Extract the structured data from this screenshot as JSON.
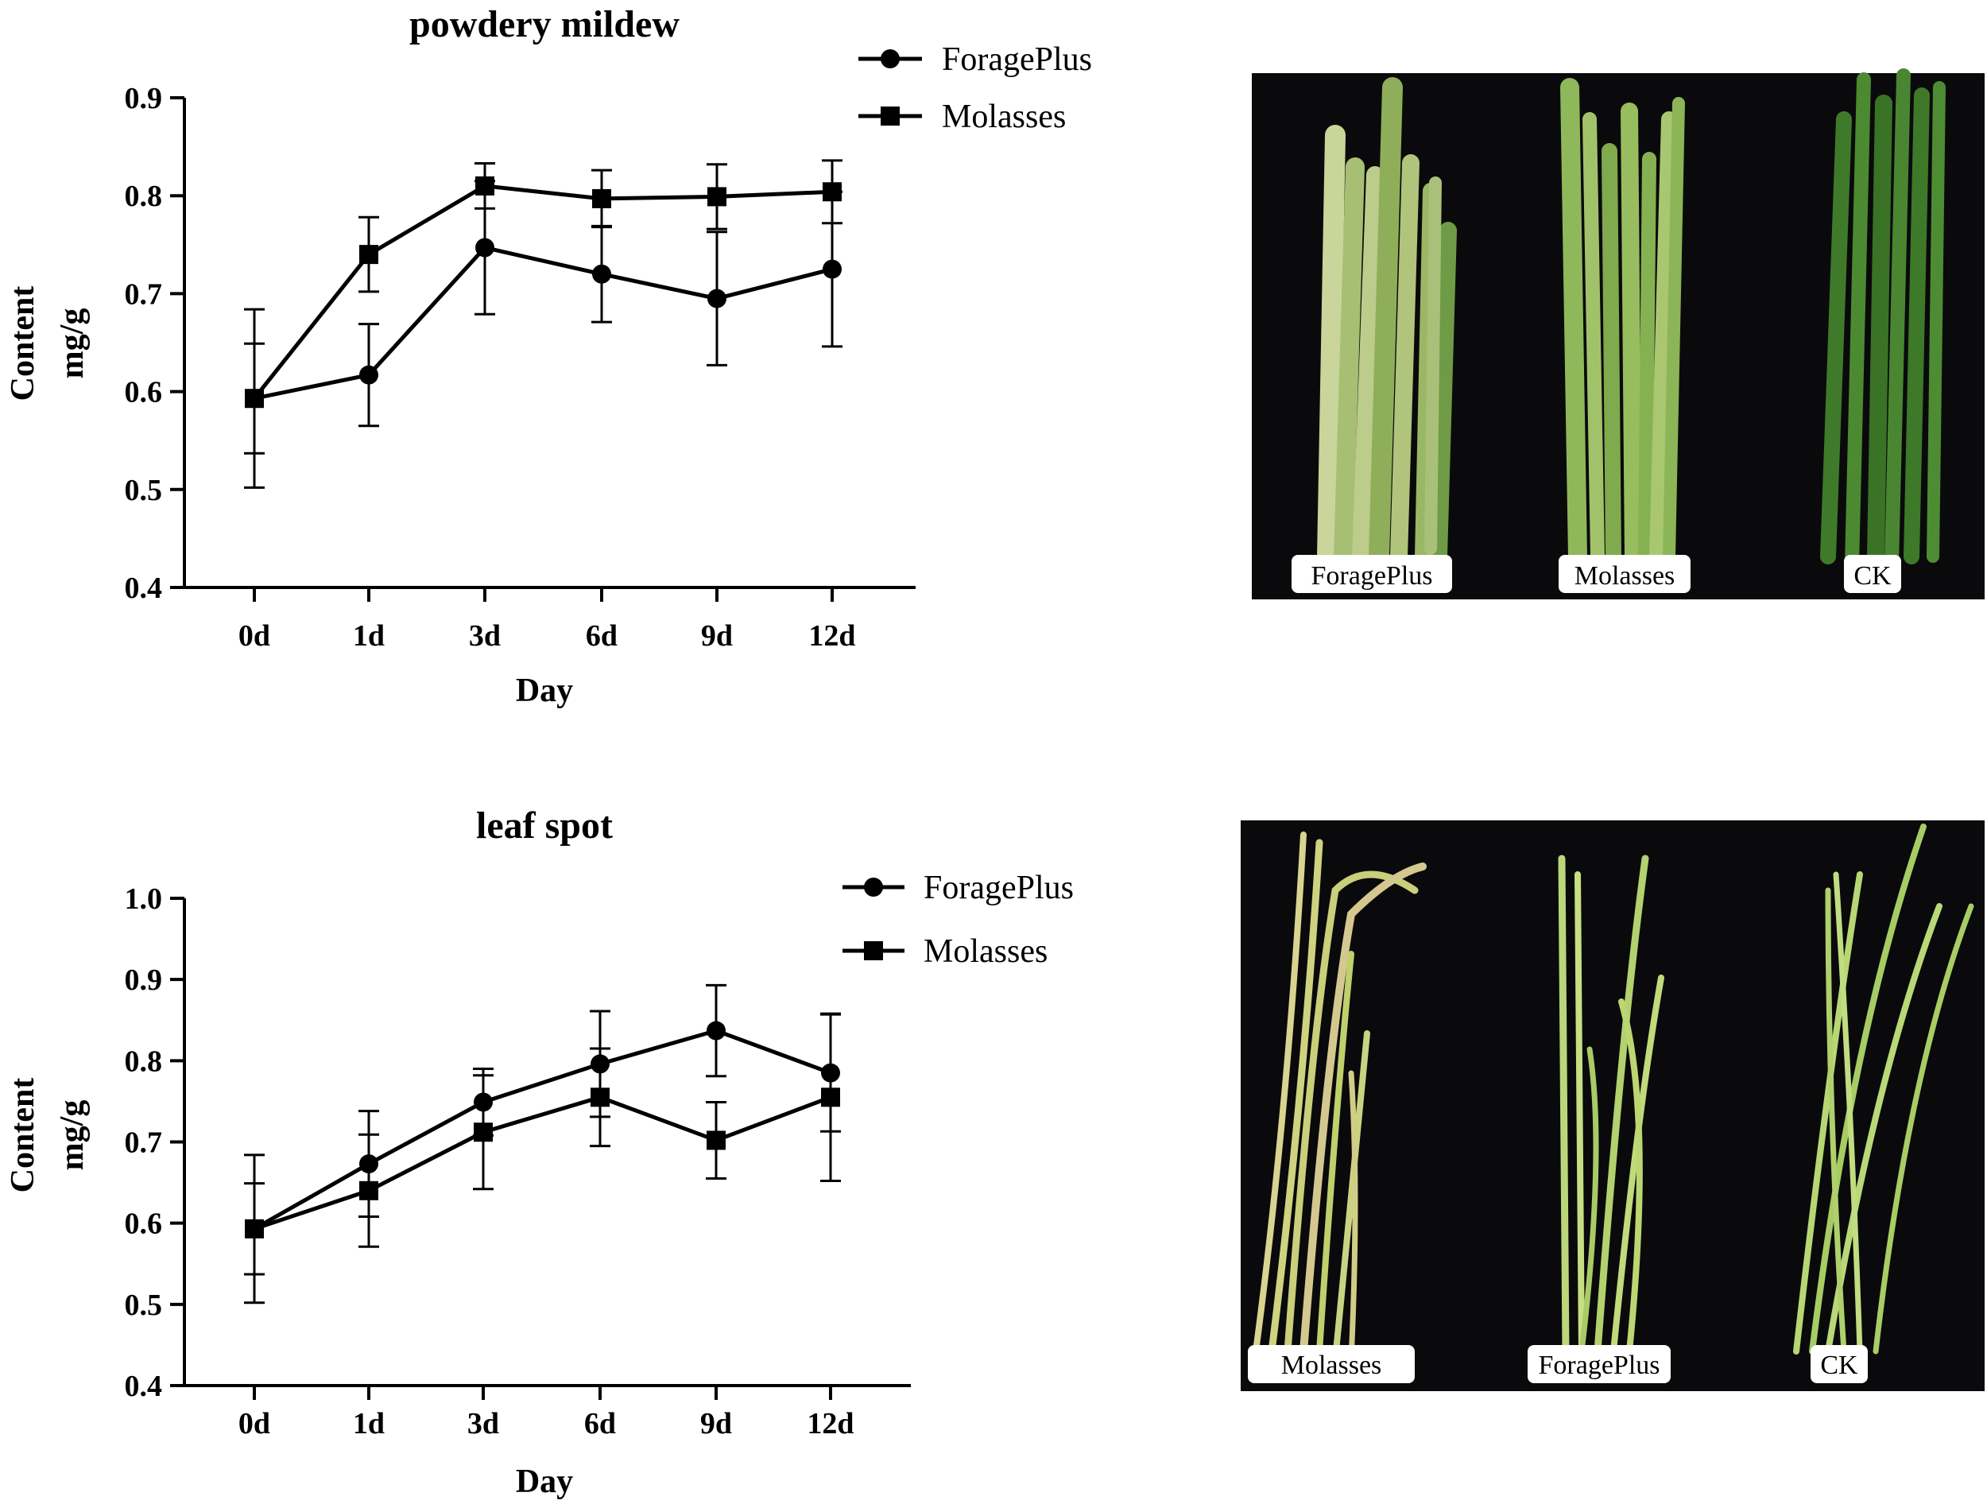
{
  "colors": {
    "line": "#000000",
    "photo_background": "#0a0a0c",
    "leaf_green": "#5f9a3c",
    "leaf_pale": "#b9d27a",
    "label_box": "#ffffff"
  },
  "chart_data": [
    {
      "type": "line",
      "title": "powdery mildew",
      "xlabel": "Day",
      "ylabel_line1": "Content",
      "ylabel_line2": "mg/g",
      "categories": [
        "0d",
        "1d",
        "3d",
        "6d",
        "9d",
        "12d"
      ],
      "ylim": [
        0.4,
        0.9
      ],
      "yticks": [
        "0.4",
        "0.5",
        "0.6",
        "0.7",
        "0.8",
        "0.9"
      ],
      "legend_position": "top-right",
      "series": [
        {
          "name": "ForagePlus",
          "marker": "circle",
          "values": [
            0.593,
            0.617,
            0.747,
            0.72,
            0.695,
            0.725
          ],
          "errors": [
            0.091,
            0.052,
            0.068,
            0.049,
            0.068,
            0.079
          ]
        },
        {
          "name": "Molasses",
          "marker": "square",
          "values": [
            0.593,
            0.74,
            0.81,
            0.797,
            0.799,
            0.804
          ],
          "errors": [
            0.056,
            0.038,
            0.023,
            0.029,
            0.033,
            0.032
          ]
        }
      ]
    },
    {
      "type": "line",
      "title": "leaf spot",
      "xlabel": "Day",
      "ylabel_line1": "Content",
      "ylabel_line2": "mg/g",
      "categories": [
        "0d",
        "1d",
        "3d",
        "6d",
        "9d",
        "12d"
      ],
      "ylim": [
        0.4,
        1.0
      ],
      "yticks": [
        "0.4",
        "0.5",
        "0.6",
        "0.7",
        "0.8",
        "0.9",
        "1.0"
      ],
      "legend_position": "top-right",
      "series": [
        {
          "name": "ForagePlus",
          "marker": "circle",
          "values": [
            0.593,
            0.673,
            0.749,
            0.796,
            0.837,
            0.785
          ],
          "errors": [
            0.091,
            0.065,
            0.041,
            0.065,
            0.056,
            0.072
          ]
        },
        {
          "name": "Molasses",
          "marker": "square",
          "values": [
            0.593,
            0.64,
            0.712,
            0.755,
            0.702,
            0.755
          ],
          "errors": [
            0.056,
            0.069,
            0.07,
            0.06,
            0.047,
            0.103
          ]
        }
      ]
    }
  ],
  "photos": [
    {
      "labels": [
        "ForagePlus",
        "Molasses",
        "CK"
      ]
    },
    {
      "labels": [
        "Molasses",
        "ForagePlus",
        "CK"
      ]
    }
  ]
}
